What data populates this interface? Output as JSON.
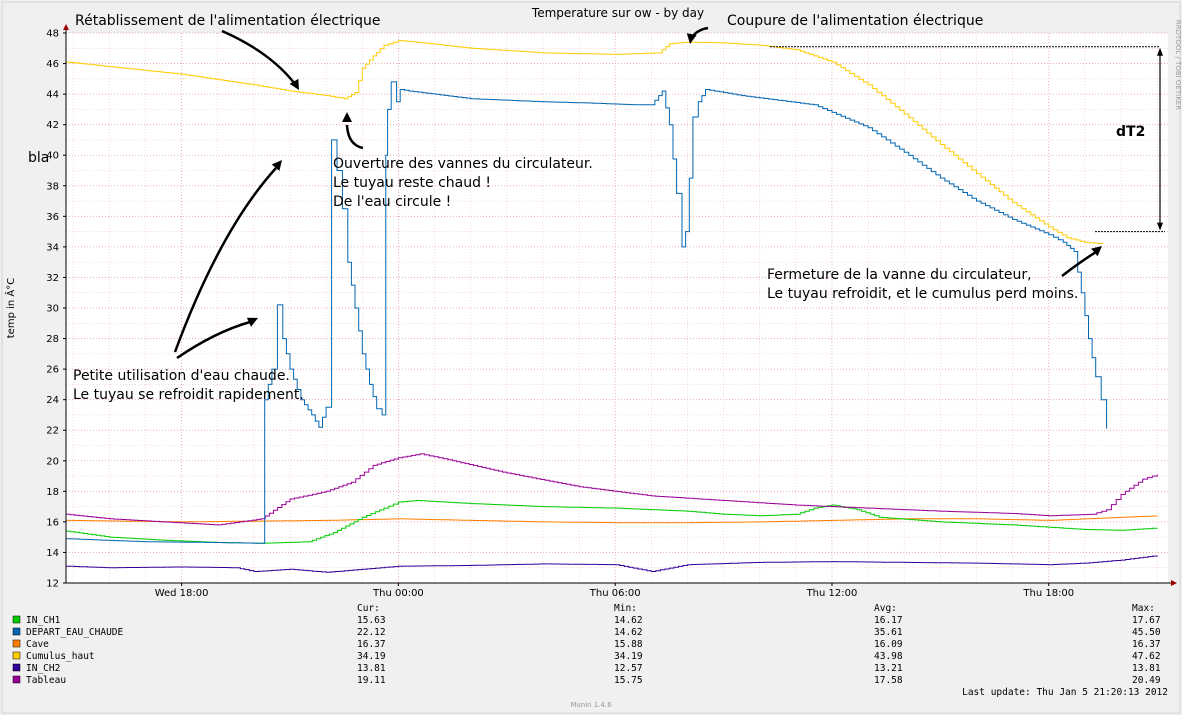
{
  "chart_data": {
    "type": "line",
    "title": "Temperature sur ow - by day",
    "ylabel": "temp in Â°C",
    "ylim": [
      12,
      48
    ],
    "y_ticks": [
      12,
      14,
      16,
      18,
      20,
      22,
      24,
      26,
      28,
      30,
      32,
      34,
      36,
      38,
      40,
      42,
      44,
      46,
      48
    ],
    "x_ticks": [
      {
        "label": "Wed 18:00",
        "x": 18
      },
      {
        "label": "Thu 00:00",
        "x": 24
      },
      {
        "label": "Thu 06:00",
        "x": 30
      },
      {
        "label": "Thu 12:00",
        "x": 36
      },
      {
        "label": "Thu 18:00",
        "x": 42
      }
    ],
    "xlim": [
      14.8,
      45.3
    ],
    "grid": true,
    "watermark": "RRDTOOL / TOBI OETIKER",
    "stray_label": "bla",
    "legend_headers": {
      "cur": "Cur:",
      "min": "Min:",
      "avg": "Avg:",
      "max": "Max:"
    },
    "series": [
      {
        "name": "IN_CH1",
        "color": "#00cc00",
        "cur": "15.63",
        "min": "14.62",
        "avg": "16.17",
        "max": "17.67",
        "points": [
          [
            14.8,
            15.4
          ],
          [
            16,
            15
          ],
          [
            17.5,
            14.8
          ],
          [
            19,
            14.65
          ],
          [
            20.2,
            14.6
          ],
          [
            21.5,
            14.7
          ],
          [
            22.2,
            15.3
          ],
          [
            23,
            16.3
          ],
          [
            23.6,
            16.9
          ],
          [
            24,
            17.3
          ],
          [
            24.5,
            17.4
          ],
          [
            26,
            17.2
          ],
          [
            28,
            17.0
          ],
          [
            30,
            16.9
          ],
          [
            32,
            16.7
          ],
          [
            33,
            16.5
          ],
          [
            34,
            16.4
          ],
          [
            35,
            16.5
          ],
          [
            35.5,
            16.9
          ],
          [
            36,
            17.1
          ],
          [
            36.7,
            16.8
          ],
          [
            37.3,
            16.3
          ],
          [
            39,
            16.0
          ],
          [
            41,
            15.8
          ],
          [
            43,
            15.5
          ],
          [
            44,
            15.45
          ],
          [
            45,
            15.6
          ]
        ]
      },
      {
        "name": "DEPART_EAU_CHAUDE",
        "color": "#0066b3",
        "cur": "22.12",
        "min": "14.62",
        "avg": "35.61",
        "max": "45.50",
        "points": [
          [
            14.8,
            14.9
          ],
          [
            17,
            14.7
          ],
          [
            19,
            14.65
          ],
          [
            20.2,
            14.6
          ],
          [
            20.3,
            24
          ],
          [
            20.5,
            26
          ],
          [
            20.65,
            30.2
          ],
          [
            20.8,
            28
          ],
          [
            21,
            26
          ],
          [
            21.3,
            24
          ],
          [
            21.6,
            23
          ],
          [
            21.8,
            22.2
          ],
          [
            22,
            23.5
          ],
          [
            22.15,
            41
          ],
          [
            22.3,
            39
          ],
          [
            22.45,
            36.5
          ],
          [
            22.6,
            33
          ],
          [
            22.8,
            30
          ],
          [
            23,
            27
          ],
          [
            23.2,
            25
          ],
          [
            23.4,
            23.4
          ],
          [
            23.55,
            23.0
          ],
          [
            23.65,
            40
          ],
          [
            23.7,
            43
          ],
          [
            23.8,
            44.8
          ],
          [
            23.95,
            43.5
          ],
          [
            24.05,
            44.3
          ],
          [
            24.3,
            44.2
          ],
          [
            26,
            43.7
          ],
          [
            28,
            43.5
          ],
          [
            29.5,
            43.4
          ],
          [
            30.5,
            43.3
          ],
          [
            31,
            43.3
          ],
          [
            31.3,
            44.2
          ],
          [
            31.5,
            42
          ],
          [
            31.7,
            37.5
          ],
          [
            31.85,
            34
          ],
          [
            31.95,
            35
          ],
          [
            32.05,
            38.5
          ],
          [
            32.15,
            42.5
          ],
          [
            32.3,
            43.5
          ],
          [
            32.5,
            44.3
          ],
          [
            33.5,
            43.9
          ],
          [
            34.5,
            43.6
          ],
          [
            35.5,
            43.3
          ],
          [
            36,
            42.8
          ],
          [
            37,
            41.8
          ],
          [
            38,
            40.2
          ],
          [
            39,
            38.5
          ],
          [
            40,
            37.0
          ],
          [
            41,
            35.8
          ],
          [
            42,
            34.8
          ],
          [
            42.4,
            34.3
          ],
          [
            42.7,
            33.7
          ],
          [
            42.9,
            31
          ],
          [
            43.1,
            28
          ],
          [
            43.3,
            25.5
          ],
          [
            43.45,
            24
          ],
          [
            43.6,
            22.1
          ]
        ]
      },
      {
        "name": "Cave",
        "color": "#ff8000",
        "cur": "16.37",
        "min": "15.88",
        "avg": "16.09",
        "max": "16.37",
        "points": [
          [
            14.8,
            16.1
          ],
          [
            18,
            16.0
          ],
          [
            20,
            16.05
          ],
          [
            22,
            16.1
          ],
          [
            24,
            16.2
          ],
          [
            26,
            16.1
          ],
          [
            28,
            16.0
          ],
          [
            30,
            15.95
          ],
          [
            32,
            15.95
          ],
          [
            34,
            16.0
          ],
          [
            36,
            16.1
          ],
          [
            38,
            16.2
          ],
          [
            40,
            16.2
          ],
          [
            42,
            16.1
          ],
          [
            43,
            16.2
          ],
          [
            44,
            16.3
          ],
          [
            45,
            16.4
          ]
        ]
      },
      {
        "name": "Cumulus_haut",
        "color": "#ffcc00",
        "cur": "34.19",
        "min": "34.19",
        "avg": "43.98",
        "max": "47.62",
        "points": [
          [
            14.8,
            46.1
          ],
          [
            16,
            45.8
          ],
          [
            18,
            45.3
          ],
          [
            20,
            44.6
          ],
          [
            21,
            44.2
          ],
          [
            22,
            43.9
          ],
          [
            22.5,
            43.7
          ],
          [
            22.8,
            44.1
          ],
          [
            23.0,
            45.7
          ],
          [
            23.3,
            46.5
          ],
          [
            23.6,
            47.2
          ],
          [
            24,
            47.5
          ],
          [
            24.5,
            47.4
          ],
          [
            26,
            47.0
          ],
          [
            28,
            46.7
          ],
          [
            30,
            46.6
          ],
          [
            31.2,
            46.7
          ],
          [
            31.5,
            47.3
          ],
          [
            32,
            47.4
          ],
          [
            33,
            47.35
          ],
          [
            34,
            47.2
          ],
          [
            35,
            46.9
          ],
          [
            36,
            46.1
          ],
          [
            37,
            44.6
          ],
          [
            38,
            42.7
          ],
          [
            39,
            40.7
          ],
          [
            40,
            38.8
          ],
          [
            41,
            36.9
          ],
          [
            42,
            35.3
          ],
          [
            42.5,
            34.6
          ],
          [
            43,
            34.3
          ],
          [
            43.5,
            34.2
          ]
        ]
      },
      {
        "name": "IN_CH2",
        "color": "#330099",
        "cur": "13.81",
        "min": "12.57",
        "avg": "13.21",
        "max": "13.81",
        "points": [
          [
            14.8,
            13.1
          ],
          [
            16,
            13.0
          ],
          [
            18,
            13.05
          ],
          [
            19.5,
            13.0
          ],
          [
            20,
            12.75
          ],
          [
            21,
            12.9
          ],
          [
            22,
            12.7
          ],
          [
            23,
            12.9
          ],
          [
            24,
            13.1
          ],
          [
            26,
            13.15
          ],
          [
            28,
            13.25
          ],
          [
            30,
            13.2
          ],
          [
            31,
            12.75
          ],
          [
            32,
            13.2
          ],
          [
            34,
            13.35
          ],
          [
            36,
            13.4
          ],
          [
            38,
            13.35
          ],
          [
            40,
            13.3
          ],
          [
            42,
            13.2
          ],
          [
            43,
            13.3
          ],
          [
            44,
            13.5
          ],
          [
            45,
            13.8
          ]
        ]
      },
      {
        "name": "Tableau",
        "color": "#990099",
        "cur": "19.11",
        "min": "15.75",
        "avg": "17.58",
        "max": "20.49",
        "points": [
          [
            14.8,
            16.5
          ],
          [
            16,
            16.2
          ],
          [
            17.5,
            16.0
          ],
          [
            19,
            15.8
          ],
          [
            20.2,
            16.2
          ],
          [
            21,
            17.5
          ],
          [
            22,
            18.0
          ],
          [
            22.7,
            18.6
          ],
          [
            23.3,
            19.7
          ],
          [
            24,
            20.2
          ],
          [
            24.6,
            20.45
          ],
          [
            25.5,
            20.0
          ],
          [
            27,
            19.2
          ],
          [
            29,
            18.3
          ],
          [
            31,
            17.7
          ],
          [
            33,
            17.4
          ],
          [
            35,
            17.1
          ],
          [
            37,
            16.9
          ],
          [
            39,
            16.7
          ],
          [
            41,
            16.55
          ],
          [
            42,
            16.4
          ],
          [
            43.2,
            16.5
          ],
          [
            43.6,
            16.8
          ],
          [
            44,
            17.8
          ],
          [
            44.6,
            18.8
          ],
          [
            45,
            19.1
          ]
        ]
      }
    ],
    "annotations": [
      {
        "lines": [
          "Rétablissement de l'alimentation électrique"
        ]
      },
      {
        "lines": [
          "Coupure de l'alimentation électrique"
        ]
      },
      {
        "lines": [
          "Ouverture des vannes du circulateur.",
          "Le tuyau reste chaud !",
          "De l'eau circule !"
        ]
      },
      {
        "lines": [
          "Petite utilisation d'eau chaude.",
          "Le tuyau se refroidit rapidement."
        ]
      },
      {
        "lines": [
          "Fermeture de la vanne du circulateur,",
          "Le tuyau refroidit, et le cumulus perd moins."
        ]
      },
      {
        "lines": [
          "dT2"
        ]
      }
    ],
    "last_update": "Last update:  Thu Jan  5 21:20:13 2012",
    "footer": "Munin 1.4.6"
  }
}
